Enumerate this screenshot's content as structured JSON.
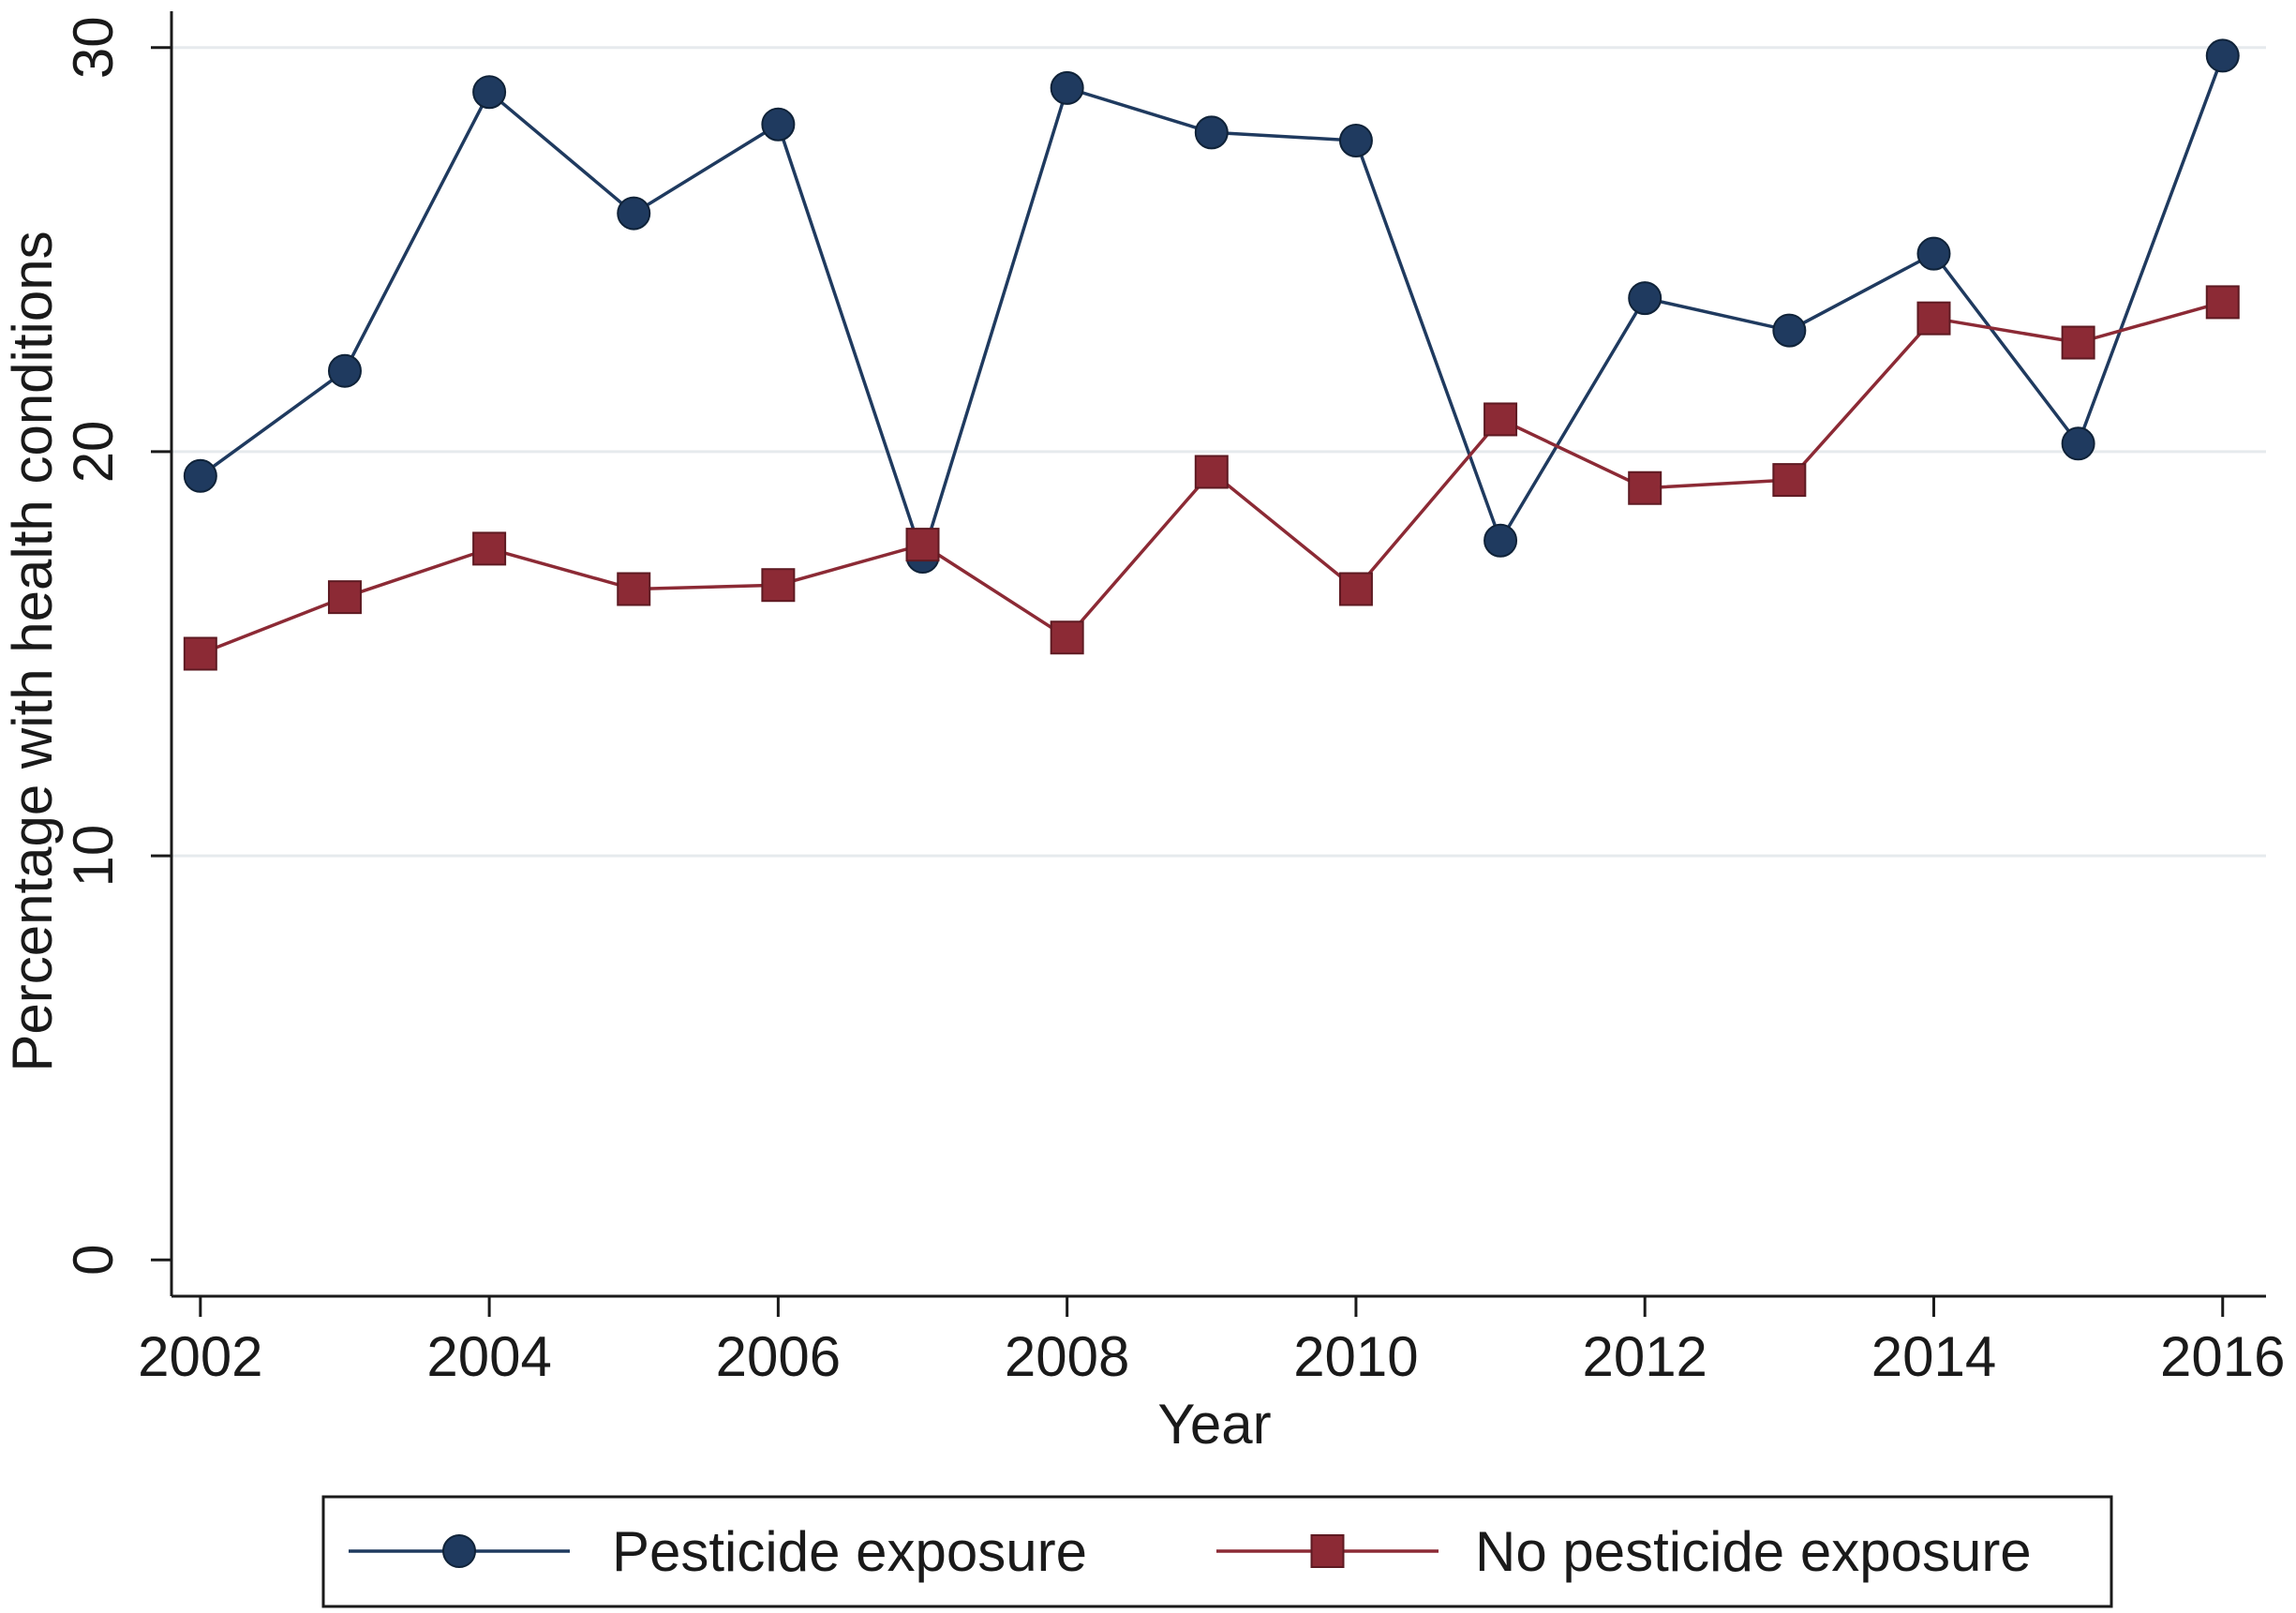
{
  "chart_data": {
    "type": "line",
    "title": "",
    "xlabel": "Year",
    "ylabel": "Percentage with health conditions",
    "x": [
      2002,
      2003,
      2004,
      2005,
      2006,
      2007,
      2008,
      2009,
      2010,
      2011,
      2012,
      2013,
      2014,
      2015,
      2016
    ],
    "xticks": [
      2002,
      2004,
      2006,
      2008,
      2010,
      2012,
      2014,
      2016
    ],
    "yticks": [
      0,
      10,
      20,
      30
    ],
    "xlim": [
      2001.8,
      2016.3
    ],
    "ylim": [
      -0.9,
      30.9
    ],
    "grid": true,
    "legend_position": "bottom",
    "series": [
      {
        "name": "Pesticide exposure",
        "marker": "circle",
        "color": "#1f3a5f",
        "values": [
          19.4,
          22.0,
          28.9,
          25.9,
          28.1,
          17.4,
          29.0,
          27.9,
          27.7,
          17.8,
          23.8,
          23.0,
          24.9,
          20.2,
          29.8
        ]
      },
      {
        "name": "No pesticide exposure",
        "marker": "square",
        "color": "#8c2a35",
        "values": [
          15.0,
          16.4,
          17.6,
          16.6,
          16.7,
          17.7,
          15.4,
          19.5,
          16.6,
          20.8,
          19.1,
          19.3,
          23.3,
          22.7,
          23.7
        ]
      }
    ]
  }
}
